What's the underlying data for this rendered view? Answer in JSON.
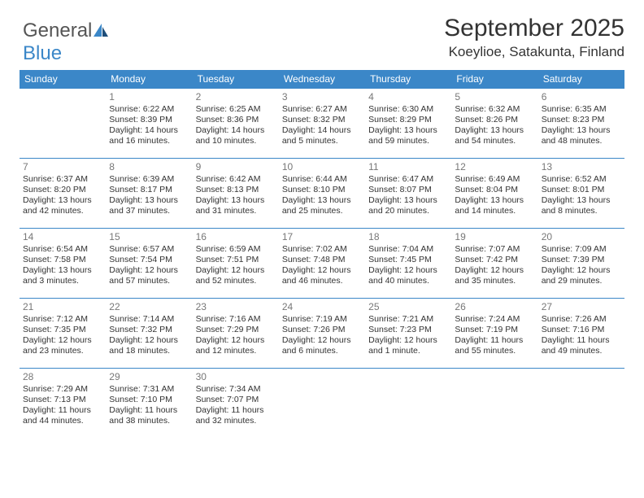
{
  "brand": {
    "part1": "General",
    "part2": "Blue"
  },
  "title": "September 2025",
  "location": "Koeylioe, Satakunta, Finland",
  "colors": {
    "header_bg": "#3b87c8",
    "header_text": "#ffffff",
    "cell_border": "#3b87c8",
    "daynum_color": "#777777",
    "body_text": "#333333",
    "background": "#ffffff"
  },
  "dayLabels": [
    "Sunday",
    "Monday",
    "Tuesday",
    "Wednesday",
    "Thursday",
    "Friday",
    "Saturday"
  ],
  "weeks": [
    [
      {
        "empty": true
      },
      {
        "day": "1",
        "sunrise": "Sunrise: 6:22 AM",
        "sunset": "Sunset: 8:39 PM",
        "daylight": "Daylight: 14 hours and 16 minutes."
      },
      {
        "day": "2",
        "sunrise": "Sunrise: 6:25 AM",
        "sunset": "Sunset: 8:36 PM",
        "daylight": "Daylight: 14 hours and 10 minutes."
      },
      {
        "day": "3",
        "sunrise": "Sunrise: 6:27 AM",
        "sunset": "Sunset: 8:32 PM",
        "daylight": "Daylight: 14 hours and 5 minutes."
      },
      {
        "day": "4",
        "sunrise": "Sunrise: 6:30 AM",
        "sunset": "Sunset: 8:29 PM",
        "daylight": "Daylight: 13 hours and 59 minutes."
      },
      {
        "day": "5",
        "sunrise": "Sunrise: 6:32 AM",
        "sunset": "Sunset: 8:26 PM",
        "daylight": "Daylight: 13 hours and 54 minutes."
      },
      {
        "day": "6",
        "sunrise": "Sunrise: 6:35 AM",
        "sunset": "Sunset: 8:23 PM",
        "daylight": "Daylight: 13 hours and 48 minutes."
      }
    ],
    [
      {
        "day": "7",
        "sunrise": "Sunrise: 6:37 AM",
        "sunset": "Sunset: 8:20 PM",
        "daylight": "Daylight: 13 hours and 42 minutes."
      },
      {
        "day": "8",
        "sunrise": "Sunrise: 6:39 AM",
        "sunset": "Sunset: 8:17 PM",
        "daylight": "Daylight: 13 hours and 37 minutes."
      },
      {
        "day": "9",
        "sunrise": "Sunrise: 6:42 AM",
        "sunset": "Sunset: 8:13 PM",
        "daylight": "Daylight: 13 hours and 31 minutes."
      },
      {
        "day": "10",
        "sunrise": "Sunrise: 6:44 AM",
        "sunset": "Sunset: 8:10 PM",
        "daylight": "Daylight: 13 hours and 25 minutes."
      },
      {
        "day": "11",
        "sunrise": "Sunrise: 6:47 AM",
        "sunset": "Sunset: 8:07 PM",
        "daylight": "Daylight: 13 hours and 20 minutes."
      },
      {
        "day": "12",
        "sunrise": "Sunrise: 6:49 AM",
        "sunset": "Sunset: 8:04 PM",
        "daylight": "Daylight: 13 hours and 14 minutes."
      },
      {
        "day": "13",
        "sunrise": "Sunrise: 6:52 AM",
        "sunset": "Sunset: 8:01 PM",
        "daylight": "Daylight: 13 hours and 8 minutes."
      }
    ],
    [
      {
        "day": "14",
        "sunrise": "Sunrise: 6:54 AM",
        "sunset": "Sunset: 7:58 PM",
        "daylight": "Daylight: 13 hours and 3 minutes."
      },
      {
        "day": "15",
        "sunrise": "Sunrise: 6:57 AM",
        "sunset": "Sunset: 7:54 PM",
        "daylight": "Daylight: 12 hours and 57 minutes."
      },
      {
        "day": "16",
        "sunrise": "Sunrise: 6:59 AM",
        "sunset": "Sunset: 7:51 PM",
        "daylight": "Daylight: 12 hours and 52 minutes."
      },
      {
        "day": "17",
        "sunrise": "Sunrise: 7:02 AM",
        "sunset": "Sunset: 7:48 PM",
        "daylight": "Daylight: 12 hours and 46 minutes."
      },
      {
        "day": "18",
        "sunrise": "Sunrise: 7:04 AM",
        "sunset": "Sunset: 7:45 PM",
        "daylight": "Daylight: 12 hours and 40 minutes."
      },
      {
        "day": "19",
        "sunrise": "Sunrise: 7:07 AM",
        "sunset": "Sunset: 7:42 PM",
        "daylight": "Daylight: 12 hours and 35 minutes."
      },
      {
        "day": "20",
        "sunrise": "Sunrise: 7:09 AM",
        "sunset": "Sunset: 7:39 PM",
        "daylight": "Daylight: 12 hours and 29 minutes."
      }
    ],
    [
      {
        "day": "21",
        "sunrise": "Sunrise: 7:12 AM",
        "sunset": "Sunset: 7:35 PM",
        "daylight": "Daylight: 12 hours and 23 minutes."
      },
      {
        "day": "22",
        "sunrise": "Sunrise: 7:14 AM",
        "sunset": "Sunset: 7:32 PM",
        "daylight": "Daylight: 12 hours and 18 minutes."
      },
      {
        "day": "23",
        "sunrise": "Sunrise: 7:16 AM",
        "sunset": "Sunset: 7:29 PM",
        "daylight": "Daylight: 12 hours and 12 minutes."
      },
      {
        "day": "24",
        "sunrise": "Sunrise: 7:19 AM",
        "sunset": "Sunset: 7:26 PM",
        "daylight": "Daylight: 12 hours and 6 minutes."
      },
      {
        "day": "25",
        "sunrise": "Sunrise: 7:21 AM",
        "sunset": "Sunset: 7:23 PM",
        "daylight": "Daylight: 12 hours and 1 minute."
      },
      {
        "day": "26",
        "sunrise": "Sunrise: 7:24 AM",
        "sunset": "Sunset: 7:19 PM",
        "daylight": "Daylight: 11 hours and 55 minutes."
      },
      {
        "day": "27",
        "sunrise": "Sunrise: 7:26 AM",
        "sunset": "Sunset: 7:16 PM",
        "daylight": "Daylight: 11 hours and 49 minutes."
      }
    ],
    [
      {
        "day": "28",
        "sunrise": "Sunrise: 7:29 AM",
        "sunset": "Sunset: 7:13 PM",
        "daylight": "Daylight: 11 hours and 44 minutes."
      },
      {
        "day": "29",
        "sunrise": "Sunrise: 7:31 AM",
        "sunset": "Sunset: 7:10 PM",
        "daylight": "Daylight: 11 hours and 38 minutes."
      },
      {
        "day": "30",
        "sunrise": "Sunrise: 7:34 AM",
        "sunset": "Sunset: 7:07 PM",
        "daylight": "Daylight: 11 hours and 32 minutes."
      },
      {
        "empty": true
      },
      {
        "empty": true
      },
      {
        "empty": true
      },
      {
        "empty": true
      }
    ]
  ]
}
